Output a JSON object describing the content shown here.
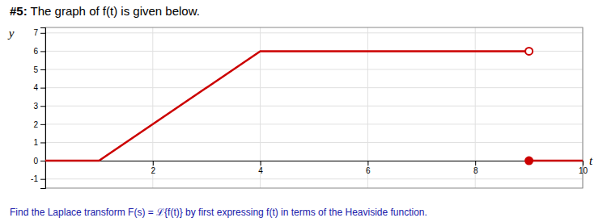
{
  "chart_data": {
    "type": "line",
    "title": "#5: The graph of f(t) is given below.",
    "annotations": [
      "Find the Laplace transform F(s) = ℒ{f(t)} by first expressing f(t) in terms of the Heaviside function."
    ],
    "xlabel": "t",
    "ylabel": "y",
    "xlim": [
      0,
      10.0
    ],
    "ylim": [
      -1.5,
      7.3
    ],
    "xticks": [
      2,
      4,
      6,
      8,
      10
    ],
    "yticks": [
      -1,
      0,
      1,
      2,
      3,
      4,
      5,
      6,
      7
    ],
    "grid": true,
    "series": [
      {
        "type": "line",
        "color": "#cc0000",
        "x": [
          0,
          1,
          4,
          9,
          9,
          9,
          10.0
        ],
        "values": [
          0,
          0,
          6,
          6,
          null,
          0,
          0
        ]
      },
      {
        "type": "scatter",
        "marker": "open-circle",
        "color": "#cc0000",
        "x": [
          9
        ],
        "values": [
          6
        ]
      },
      {
        "type": "scatter",
        "marker": "circle",
        "color": "#cc0000",
        "x": [
          9
        ],
        "values": [
          0
        ]
      }
    ]
  }
}
